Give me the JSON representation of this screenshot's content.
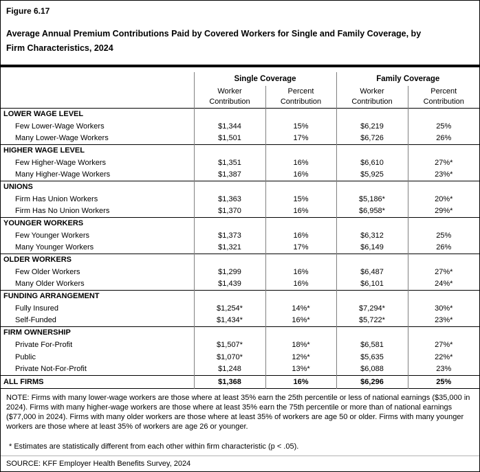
{
  "figure": {
    "label": "Figure 6.17",
    "title": "Average Annual Premium Contributions Paid by Covered Workers for Single and Family Coverage, by Firm Characteristics, 2024"
  },
  "table": {
    "group_headers": [
      "Single Coverage",
      "Family Coverage"
    ],
    "sub_headers": [
      "Worker Contribution",
      "Percent Contribution",
      "Worker Contribution",
      "Percent Contribution"
    ],
    "sections": [
      {
        "header": "LOWER WAGE LEVEL",
        "rows": [
          {
            "label": "Few Lower-Wage Workers",
            "values": [
              "$1,344",
              "15%",
              "$6,219",
              "25%"
            ]
          },
          {
            "label": "Many Lower-Wage Workers",
            "values": [
              "$1,501",
              "17%",
              "$6,726",
              "26%"
            ]
          }
        ]
      },
      {
        "header": "HIGHER WAGE LEVEL",
        "rows": [
          {
            "label": "Few Higher-Wage Workers",
            "values": [
              "$1,351",
              "16%",
              "$6,610",
              "27%*"
            ]
          },
          {
            "label": "Many Higher-Wage Workers",
            "values": [
              "$1,387",
              "16%",
              "$5,925",
              "23%*"
            ]
          }
        ]
      },
      {
        "header": "UNIONS",
        "rows": [
          {
            "label": "Firm Has Union Workers",
            "values": [
              "$1,363",
              "15%",
              "$5,186*",
              "20%*"
            ]
          },
          {
            "label": "Firm Has No Union Workers",
            "values": [
              "$1,370",
              "16%",
              "$6,958*",
              "29%*"
            ]
          }
        ]
      },
      {
        "header": "YOUNGER WORKERS",
        "rows": [
          {
            "label": "Few Younger Workers",
            "values": [
              "$1,373",
              "16%",
              "$6,312",
              "25%"
            ]
          },
          {
            "label": "Many Younger Workers",
            "values": [
              "$1,321",
              "17%",
              "$6,149",
              "26%"
            ]
          }
        ]
      },
      {
        "header": "OLDER WORKERS",
        "rows": [
          {
            "label": "Few Older Workers",
            "values": [
              "$1,299",
              "16%",
              "$6,487",
              "27%*"
            ]
          },
          {
            "label": "Many Older Workers",
            "values": [
              "$1,439",
              "16%",
              "$6,101",
              "24%*"
            ]
          }
        ]
      },
      {
        "header": "FUNDING ARRANGEMENT",
        "rows": [
          {
            "label": "Fully Insured",
            "values": [
              "$1,254*",
              "14%*",
              "$7,294*",
              "30%*"
            ]
          },
          {
            "label": "Self-Funded",
            "values": [
              "$1,434*",
              "16%*",
              "$5,722*",
              "23%*"
            ]
          }
        ]
      },
      {
        "header": "FIRM OWNERSHIP",
        "rows": [
          {
            "label": "Private For-Profit",
            "values": [
              "$1,507*",
              "18%*",
              "$6,581",
              "27%*"
            ]
          },
          {
            "label": "Public",
            "values": [
              "$1,070*",
              "12%*",
              "$5,635",
              "22%*"
            ]
          },
          {
            "label": "Private Not-For-Profit",
            "values": [
              "$1,248",
              "13%*",
              "$6,088",
              "23%"
            ]
          }
        ]
      }
    ],
    "total_row": {
      "label": "ALL FIRMS",
      "values": [
        "$1,368",
        "16%",
        "$6,296",
        "25%"
      ]
    }
  },
  "notes": {
    "note": "NOTE: Firms with many lower-wage workers are those where at least 35% earn the 25th percentile or less of national earnings ($35,000 in 2024). Firms with many higher-wage workers are those where at least 35% earn the 75th percentile or more than of national earnings ($77,000 in 2024). Firms with many older workers are those where at least 35% of workers are age 50 or older. Firms with many younger workers are those where at least 35% of workers are age 26 or younger.",
    "asterisk": "* Estimates are statistically different from each other within firm characteristic (p < .05).",
    "source": "SOURCE: KFF Employer Health Benefits Survey, 2024"
  }
}
